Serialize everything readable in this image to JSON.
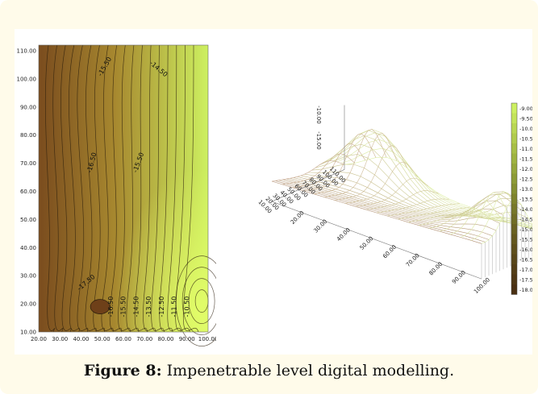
{
  "chart_data": [
    {
      "type": "contour",
      "x_ticks": [
        "20.00",
        "30.00",
        "40.00",
        "50.00",
        "60.00",
        "70.00",
        "80.00",
        "90.00",
        "100.00"
      ],
      "y_ticks": [
        "10.00",
        "20.00",
        "30.00",
        "40.00",
        "50.00",
        "60.00",
        "70.00",
        "80.00",
        "90.00",
        "100.00",
        "110.00"
      ],
      "xlim": [
        20,
        100
      ],
      "ylim": [
        10,
        112
      ],
      "contour_labels": [
        "-15.50",
        "-14.50",
        "-16.50",
        "-15.50",
        "-17.50",
        "-16.50",
        "-15.50",
        "-14.50",
        "-13.50",
        "-12.50",
        "-11.50",
        "-10.50"
      ],
      "colors": {
        "low": "#7a4c1e",
        "mid": "#a7882f",
        "high": "#cdf060",
        "line": "#2b1d0c"
      }
    },
    {
      "type": "surface",
      "axis_labels": [
        "110.00",
        "100.00",
        "90.00",
        "80.00",
        "70.00",
        "60.00",
        "50.00",
        "40.00",
        "30.00",
        "20.00",
        "10.00",
        "20.00",
        "30.00",
        "40.00",
        "50.00",
        "60.00",
        "70.00",
        "80.00",
        "90.00",
        "100.00",
        "-10.00",
        "-15.00"
      ],
      "colors": {
        "low": "#b08f72",
        "high": "#dff0a8",
        "mesh": "#c9a992"
      }
    },
    {
      "type": "legend",
      "legend_values": [
        "-9.00",
        "-9.50",
        "-10.00",
        "-10.50",
        "-11.00",
        "-11.50",
        "-12.00",
        "-12.50",
        "-13.00",
        "-13.50",
        "-14.00",
        "-14.50",
        "-15.00",
        "-15.50",
        "-16.00",
        "-16.50",
        "-17.00",
        "-17.50",
        "-18.00"
      ],
      "colors": [
        "#cdf060",
        "#c4e45a",
        "#bad753",
        "#b1cb4d",
        "#a8bf47",
        "#9fb341",
        "#96a73c",
        "#8d9b37",
        "#858f32",
        "#7e832d",
        "#777829",
        "#706d25",
        "#6a6222",
        "#64581f",
        "#5e4f1c",
        "#584619",
        "#533e17",
        "#4e3715",
        "#4a3013"
      ]
    }
  ],
  "caption": {
    "label": "Figure 8:",
    "text": " Impenetrable level digital modelling."
  }
}
